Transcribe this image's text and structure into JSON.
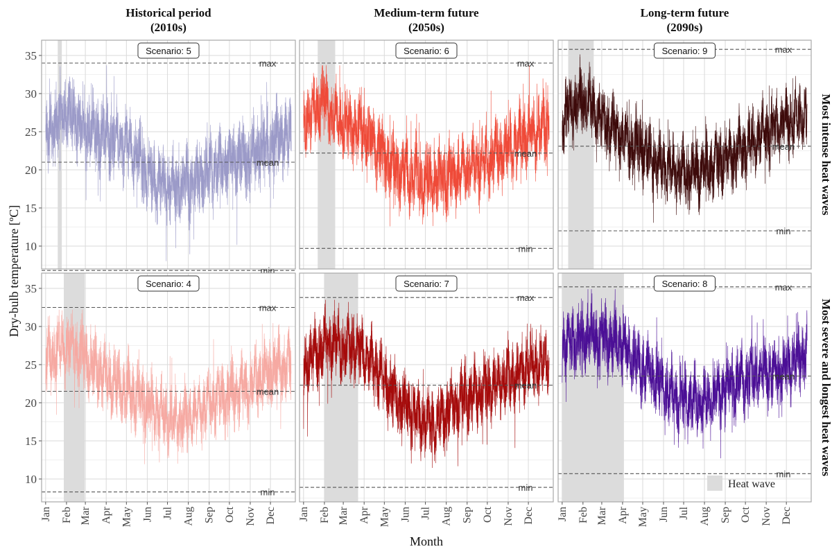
{
  "chart_data": {
    "type": "line",
    "xlabel": "Month",
    "ylabel": "Dry-bulb temperature [ºC]",
    "ylim": [
      7,
      37
    ],
    "yticks": [
      10,
      15,
      20,
      25,
      30,
      35
    ],
    "months": [
      "Jan",
      "Feb",
      "Mar",
      "Apr",
      "May",
      "Jun",
      "Jul",
      "Aug",
      "Sep",
      "Oct",
      "Nov",
      "Dec"
    ],
    "columns": [
      {
        "title_line1": "Historical period",
        "title_line2": "(2010s)"
      },
      {
        "title_line1": "Medium-term future",
        "title_line2": "(2050s)"
      },
      {
        "title_line1": "Long-term future",
        "title_line2": "(2090s)"
      }
    ],
    "rows": [
      "Most intense heat waves",
      "Most severe and longest heat waves"
    ],
    "ref_labels": {
      "max": "max",
      "mean": "mean",
      "min": "min"
    },
    "legend": {
      "label": "Heat wave",
      "color": "#dcdcdc"
    },
    "panels": [
      {
        "row": 0,
        "col": 0,
        "scenario_label": "Scenario: 5",
        "color": "#9b9ac8",
        "stats": {
          "max": 34.0,
          "mean": 21.0,
          "min": 6.8
        },
        "heatwave_days": [
          19,
          25
        ],
        "profile_doy": [
          1,
          15,
          30,
          45,
          60,
          75,
          90,
          105,
          120,
          135,
          150,
          165,
          180,
          195,
          210,
          225,
          240,
          255,
          270,
          285,
          300,
          315,
          330,
          345,
          365
        ],
        "profile_temp": [
          23.5,
          26.5,
          27.5,
          26.5,
          25.5,
          25.0,
          24.5,
          24.0,
          23.5,
          22.0,
          20.0,
          18.5,
          18.0,
          17.5,
          18.0,
          18.5,
          19.5,
          20.5,
          21.0,
          21.5,
          21.5,
          22.5,
          23.5,
          24.0,
          24.5
        ],
        "noise_amp": 3.0
      },
      {
        "row": 0,
        "col": 1,
        "scenario_label": "Scenario: 6",
        "color": "#ef4a38",
        "stats": {
          "max": 34.0,
          "mean": 22.2,
          "min": 9.7
        },
        "heatwave_days": [
          22,
          48
        ],
        "profile_doy": [
          1,
          15,
          30,
          45,
          60,
          75,
          90,
          105,
          120,
          135,
          150,
          165,
          180,
          195,
          210,
          225,
          240,
          255,
          270,
          285,
          300,
          315,
          330,
          345,
          365
        ],
        "profile_temp": [
          26.0,
          27.5,
          29.0,
          27.0,
          26.0,
          25.5,
          25.0,
          23.5,
          22.0,
          20.5,
          19.5,
          19.0,
          18.5,
          18.5,
          19.0,
          19.5,
          20.0,
          20.5,
          21.0,
          22.0,
          22.5,
          23.5,
          24.5,
          25.0,
          26.0
        ],
        "noise_amp": 2.8
      },
      {
        "row": 0,
        "col": 2,
        "scenario_label": "Scenario: 9",
        "color": "#3d0a0a",
        "stats": {
          "max": 35.8,
          "mean": 23.1,
          "min": 12.0
        },
        "heatwave_days": [
          10,
          48
        ],
        "profile_doy": [
          1,
          15,
          30,
          45,
          60,
          75,
          90,
          105,
          120,
          135,
          150,
          165,
          180,
          195,
          210,
          225,
          240,
          255,
          270,
          285,
          300,
          315,
          330,
          345,
          365
        ],
        "profile_temp": [
          26.5,
          28.0,
          29.5,
          28.0,
          26.5,
          25.5,
          24.5,
          23.5,
          22.5,
          21.5,
          20.5,
          20.0,
          19.5,
          19.5,
          20.0,
          20.5,
          21.5,
          22.0,
          22.5,
          23.5,
          24.5,
          25.5,
          26.0,
          26.5,
          27.0
        ],
        "noise_amp": 2.6
      },
      {
        "row": 1,
        "col": 0,
        "scenario_label": "Scenario: 4",
        "color": "#f6a9a2",
        "stats": {
          "max": 32.5,
          "mean": 21.5,
          "min": 8.3
        },
        "heatwave_days": [
          28,
          59
        ],
        "profile_doy": [
          1,
          15,
          30,
          45,
          60,
          75,
          90,
          105,
          120,
          135,
          150,
          165,
          180,
          195,
          210,
          225,
          240,
          255,
          270,
          285,
          300,
          315,
          330,
          345,
          365
        ],
        "profile_temp": [
          25.5,
          26.5,
          27.5,
          27.0,
          25.5,
          24.5,
          23.5,
          22.5,
          21.5,
          21.0,
          20.0,
          19.0,
          18.0,
          17.5,
          18.0,
          18.5,
          19.5,
          20.5,
          21.0,
          21.5,
          22.0,
          23.0,
          24.0,
          24.5,
          25.0
        ],
        "noise_amp": 2.6
      },
      {
        "row": 1,
        "col": 1,
        "scenario_label": "Scenario: 7",
        "color": "#a50a0a",
        "stats": {
          "max": 33.8,
          "mean": 22.3,
          "min": 8.9
        },
        "heatwave_days": [
          32,
          82
        ],
        "profile_doy": [
          1,
          15,
          30,
          45,
          60,
          75,
          90,
          105,
          120,
          135,
          150,
          165,
          180,
          195,
          210,
          225,
          240,
          255,
          270,
          285,
          300,
          315,
          330,
          345,
          365
        ],
        "profile_temp": [
          25.0,
          26.0,
          27.5,
          28.0,
          27.5,
          27.0,
          26.5,
          25.0,
          23.0,
          21.0,
          19.5,
          18.5,
          17.5,
          17.5,
          18.5,
          19.5,
          20.5,
          21.0,
          21.5,
          22.0,
          23.0,
          23.5,
          24.5,
          25.0,
          25.5
        ],
        "noise_amp": 2.5
      },
      {
        "row": 1,
        "col": 2,
        "scenario_label": "Scenario: 8",
        "color": "#4b0f96",
        "stats": {
          "max": 35.2,
          "mean": 23.5,
          "min": 10.7
        },
        "heatwave_days": [
          1,
          93
        ],
        "profile_doy": [
          1,
          15,
          30,
          45,
          60,
          75,
          90,
          105,
          120,
          135,
          150,
          165,
          180,
          195,
          210,
          225,
          240,
          255,
          270,
          285,
          300,
          315,
          330,
          345,
          365
        ],
        "profile_temp": [
          27.5,
          28.0,
          28.5,
          29.0,
          28.5,
          28.0,
          27.5,
          26.0,
          24.5,
          23.5,
          22.0,
          21.0,
          20.5,
          20.0,
          20.0,
          20.5,
          21.5,
          22.5,
          23.0,
          23.5,
          24.0,
          24.0,
          24.5,
          25.5,
          26.5
        ],
        "noise_amp": 2.6
      }
    ]
  }
}
